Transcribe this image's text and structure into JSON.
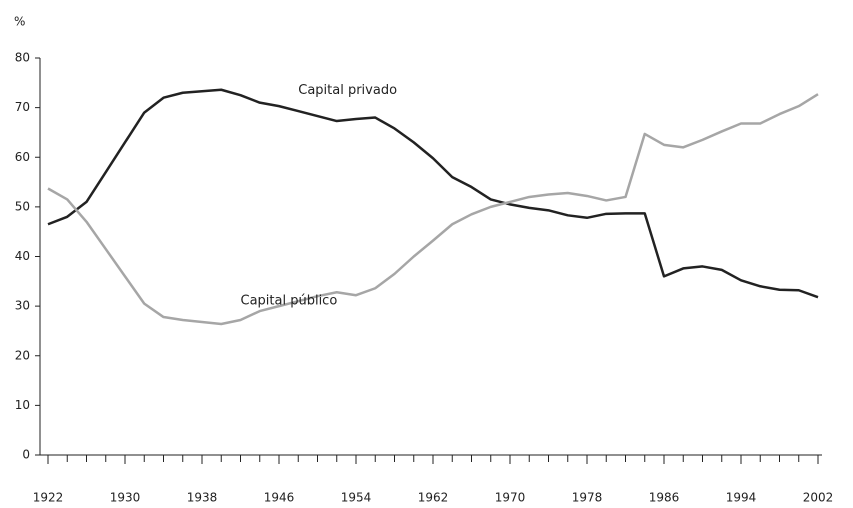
{
  "chart_data": {
    "type": "line",
    "y_label": "%",
    "x": [
      1922,
      1924,
      1926,
      1928,
      1930,
      1932,
      1934,
      1936,
      1938,
      1940,
      1942,
      1944,
      1946,
      1948,
      1950,
      1952,
      1954,
      1956,
      1958,
      1960,
      1962,
      1964,
      1966,
      1968,
      1970,
      1972,
      1974,
      1976,
      1978,
      1980,
      1982,
      1984,
      1986,
      1988,
      1990,
      1992,
      1994,
      1996,
      1998,
      2000,
      2002
    ],
    "series": [
      {
        "name": "Capital privado",
        "color": "#222222",
        "values": [
          46.5,
          48,
          51,
          57,
          63,
          69,
          72,
          73,
          73.3,
          73.6,
          72.5,
          71,
          70.3,
          69.3,
          68.3,
          67.3,
          67.7,
          68,
          65.8,
          63,
          59.8,
          56,
          54,
          51.5,
          50.5,
          49.8,
          49.3,
          48.3,
          47.8,
          48.6,
          48.7,
          48.7,
          36,
          37.6,
          38,
          37.3,
          35.2,
          34,
          33.3,
          33.2,
          31.8
        ]
      },
      {
        "name": "Capital público",
        "color": "#a6a6a6",
        "values": [
          53.7,
          51.5,
          47,
          41.5,
          36,
          30.5,
          27.8,
          27.2,
          26.8,
          26.4,
          27.2,
          29,
          30,
          31,
          32,
          32.8,
          32.2,
          33.6,
          36.5,
          40,
          43.2,
          46.5,
          48.5,
          50,
          51,
          52,
          52.5,
          52.8,
          52.2,
          51.3,
          52,
          64.7,
          62.5,
          62,
          63.5,
          65.2,
          66.8,
          66.8,
          68.7,
          70.3,
          72.7
        ]
      }
    ],
    "xlim": [
      1922,
      2002
    ],
    "xticks": [
      1922,
      1930,
      1938,
      1946,
      1954,
      1962,
      1970,
      1978,
      1986,
      1994,
      2002
    ],
    "ylim": [
      0,
      80
    ],
    "yticks": [
      0,
      10,
      20,
      30,
      40,
      50,
      60,
      70,
      80
    ],
    "grid": false,
    "annotations": [
      {
        "text": "Capital privado",
        "x": 1948,
        "y": 73.5
      },
      {
        "text": "Capital público",
        "x": 1942,
        "y": 31
      }
    ]
  }
}
